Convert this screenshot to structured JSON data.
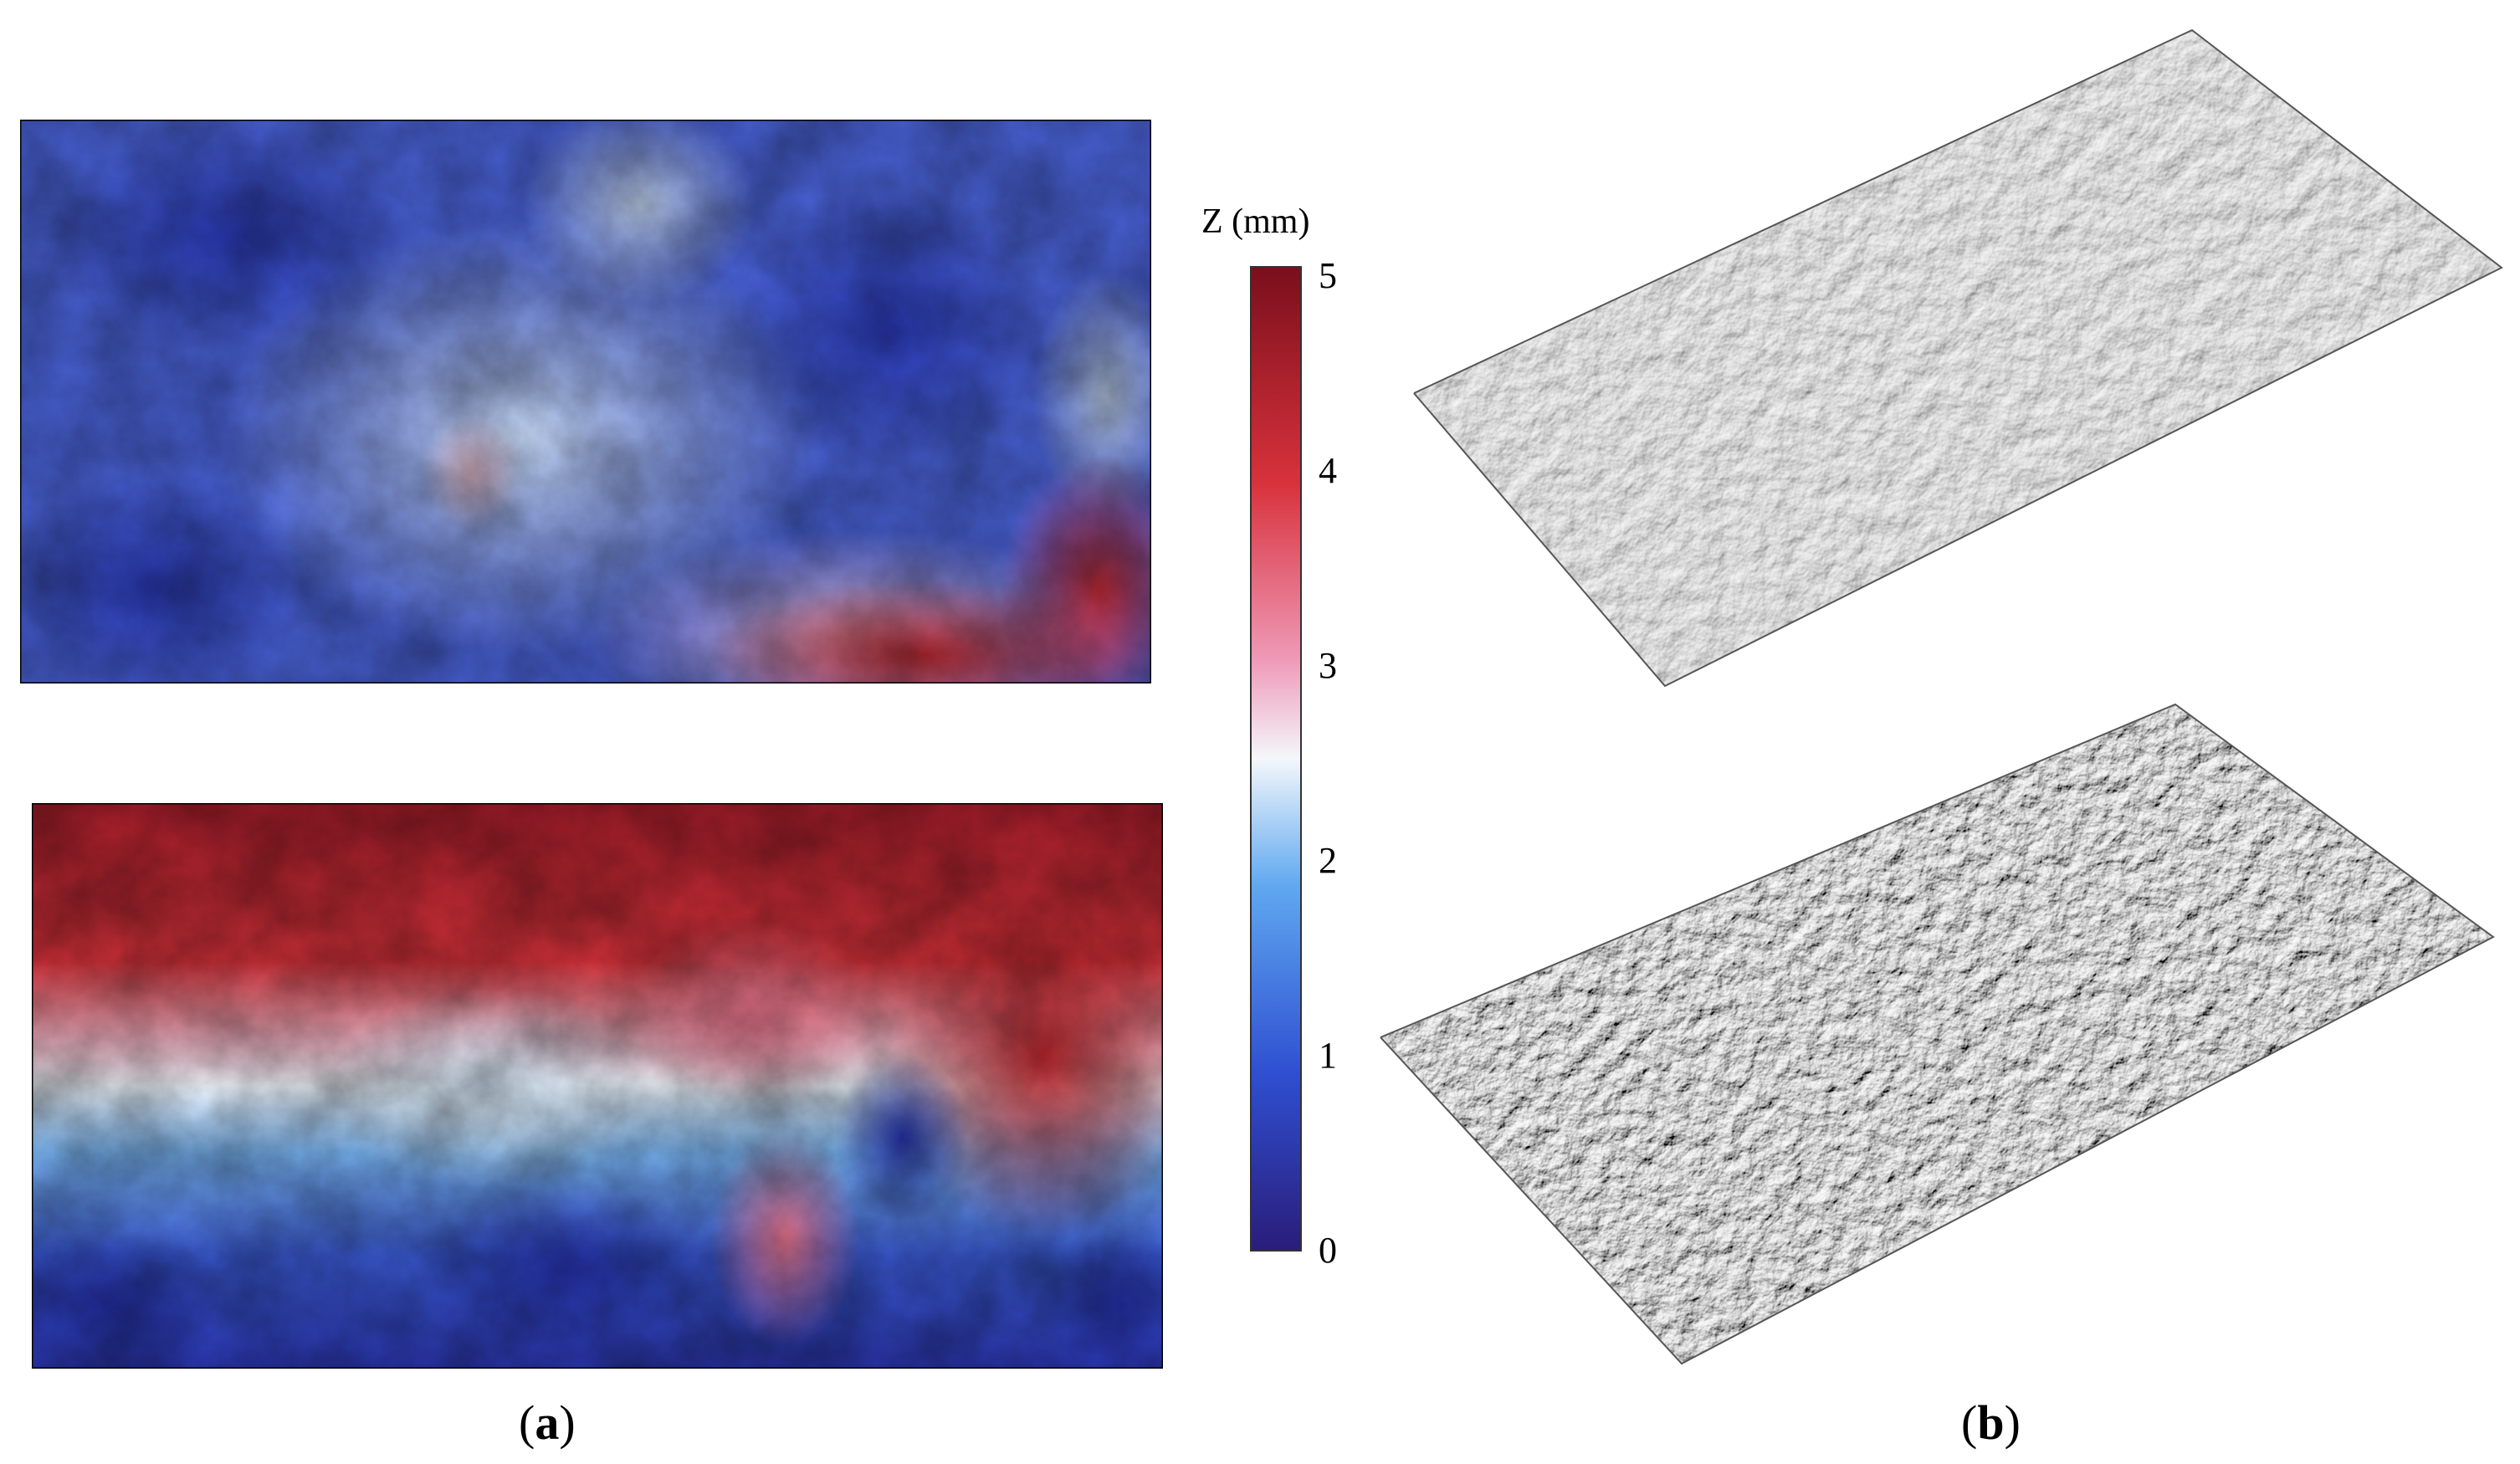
{
  "figure": {
    "colorbar": {
      "title": "Z (mm)",
      "ticks": [
        "5",
        "4",
        "3",
        "2",
        "1",
        "0"
      ],
      "range": [
        0,
        5
      ],
      "colormap": [
        "#2a1d7a",
        "#2f4fd1",
        "#5fa8f0",
        "#f4f7fb",
        "#ef9ab8",
        "#d8323c",
        "#7a0f1c"
      ]
    },
    "captions": {
      "a_open": "(",
      "a_letter": "a",
      "a_close": ")",
      "b_open": "(",
      "b_letter": "b",
      "b_close": ")"
    },
    "panel_a": {
      "maps": [
        "top-height-map",
        "bottom-height-map"
      ]
    },
    "panel_b": {
      "surfaces": [
        "top-3d-surface",
        "bottom-3d-surface"
      ]
    }
  }
}
